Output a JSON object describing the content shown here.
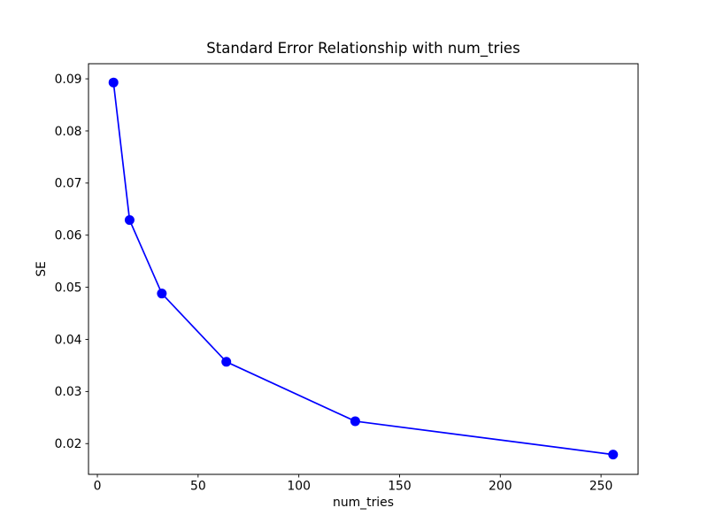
{
  "figure": {
    "background": "#ffffff"
  },
  "chart_data": {
    "type": "line",
    "title": "Standard Error Relationship with num_tries",
    "xlabel": "num_tries",
    "ylabel": "SE",
    "x": [
      8,
      16,
      32,
      64,
      128,
      256
    ],
    "y": [
      0.0893,
      0.0629,
      0.0488,
      0.0357,
      0.0243,
      0.0179
    ],
    "series_name": "SE",
    "xlim": [
      -4.4,
      268.4
    ],
    "ylim": [
      0.0141,
      0.0929
    ],
    "xticks": [
      0,
      50,
      100,
      150,
      200,
      250
    ],
    "xtick_labels": [
      "0",
      "50",
      "100",
      "150",
      "200",
      "250"
    ],
    "yticks": [
      0.02,
      0.03,
      0.04,
      0.05,
      0.06,
      0.07,
      0.08,
      0.09
    ],
    "ytick_labels": [
      "0.02",
      "0.03",
      "0.04",
      "0.05",
      "0.06",
      "0.07",
      "0.08",
      "0.09"
    ],
    "line_color": "#0000ff",
    "marker": "circle",
    "grid": false,
    "legend": false
  }
}
